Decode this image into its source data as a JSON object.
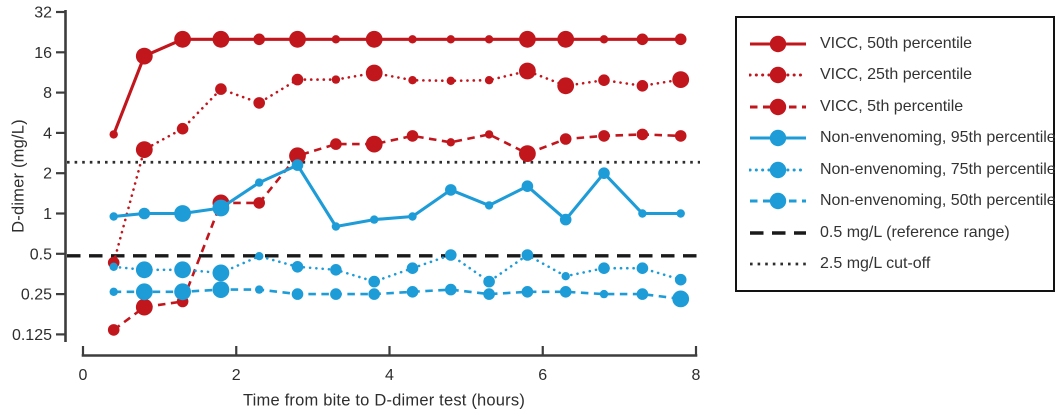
{
  "figure": {
    "kind": "line-chart-figure",
    "background": "#ffffff"
  },
  "chart_data": {
    "type": "line",
    "title": "",
    "xlabel": "Time from bite to D-dimer test (hours)",
    "ylabel": "D-dimer (mg/L)",
    "legend_position": "right",
    "grid": false,
    "x_axis": {
      "range": [
        0,
        8
      ],
      "ticks": [
        0,
        2,
        4,
        6,
        8
      ]
    },
    "y_axis": {
      "scale": "log2",
      "range": [
        0.125,
        32
      ],
      "ticks": [
        32,
        16,
        8,
        4,
        2,
        1,
        0.5,
        0.25,
        0.125
      ],
      "unit": "mg/L"
    },
    "x": [
      0.4,
      0.8,
      1.3,
      1.8,
      2.3,
      2.8,
      3.3,
      3.8,
      4.3,
      4.8,
      5.3,
      5.8,
      6.3,
      6.8,
      7.3,
      7.8
    ],
    "series": [
      {
        "name": "VICC, 50th percentile",
        "color": "#c2161d",
        "line": "solid",
        "values": [
          3.9,
          15,
          20,
          20,
          20,
          20,
          20,
          20,
          20,
          20,
          20,
          20,
          20,
          20,
          20,
          20
        ],
        "sizes": [
          "s",
          "l",
          "l",
          "l",
          "m",
          "l",
          "s",
          "l",
          "s",
          "s",
          "s",
          "l",
          "l",
          "s",
          "m",
          "m"
        ]
      },
      {
        "name": "VICC, 25th percentile",
        "color": "#c2161d",
        "line": "dotted",
        "values": [
          0.43,
          3.0,
          4.3,
          8.5,
          6.7,
          10,
          10,
          11.2,
          9.9,
          9.8,
          9.9,
          11.6,
          9.0,
          9.9,
          9.0,
          10
        ],
        "sizes": [
          "m",
          "l",
          "m",
          "m",
          "m",
          "m",
          "s",
          "l",
          "s",
          "s",
          "s",
          "l",
          "l",
          "m",
          "m",
          "l"
        ]
      },
      {
        "name": "VICC, 5th percentile",
        "color": "#c2161d",
        "line": "dashed",
        "values": [
          0.135,
          0.2,
          0.22,
          1.2,
          1.2,
          2.7,
          3.3,
          3.3,
          3.8,
          3.4,
          3.9,
          2.8,
          3.6,
          3.8,
          3.9,
          3.8
        ],
        "sizes": [
          "m",
          "l",
          "m",
          "l",
          "m",
          "l",
          "m",
          "l",
          "m",
          "s",
          "s",
          "l",
          "m",
          "m",
          "m",
          "m"
        ]
      },
      {
        "name": "Non-envenoming, 95th percentile",
        "color": "#1e9cd8",
        "line": "solid",
        "values": [
          0.95,
          1.0,
          1.0,
          1.1,
          1.7,
          2.3,
          0.8,
          0.9,
          0.95,
          1.5,
          1.15,
          1.6,
          0.9,
          2.0,
          1.0,
          1.0
        ],
        "sizes": [
          "s",
          "m",
          "l",
          "l",
          "s",
          "m",
          "s",
          "s",
          "s",
          "m",
          "s",
          "m",
          "m",
          "m",
          "s",
          "s"
        ]
      },
      {
        "name": "Non-envenoming, 75th percentile",
        "color": "#1e9cd8",
        "line": "dotted",
        "values": [
          0.4,
          0.38,
          0.38,
          0.36,
          0.48,
          0.4,
          0.38,
          0.31,
          0.39,
          0.49,
          0.31,
          0.49,
          0.34,
          0.39,
          0.39,
          0.32
        ],
        "sizes": [
          "s",
          "l",
          "l",
          "l",
          "s",
          "m",
          "m",
          "m",
          "m",
          "m",
          "m",
          "m",
          "s",
          "m",
          "m",
          "m"
        ]
      },
      {
        "name": "Non-envenoming, 50th percentile",
        "color": "#1e9cd8",
        "line": "dashed",
        "values": [
          0.26,
          0.26,
          0.26,
          0.27,
          0.27,
          0.25,
          0.25,
          0.25,
          0.26,
          0.27,
          0.25,
          0.26,
          0.26,
          0.25,
          0.25,
          0.23
        ],
        "sizes": [
          "s",
          "l",
          "l",
          "l",
          "s",
          "m",
          "m",
          "m",
          "m",
          "m",
          "m",
          "m",
          "m",
          "s",
          "m",
          "l"
        ]
      }
    ],
    "reference_lines": [
      {
        "label": "0.5 mg/L (reference range)",
        "value": 0.5,
        "color": "#1a1a1a",
        "line": "dashed"
      },
      {
        "label": "2.5 mg/L cut-off",
        "value": 2.5,
        "color": "#2e2e2e",
        "line": "dotted"
      }
    ]
  }
}
